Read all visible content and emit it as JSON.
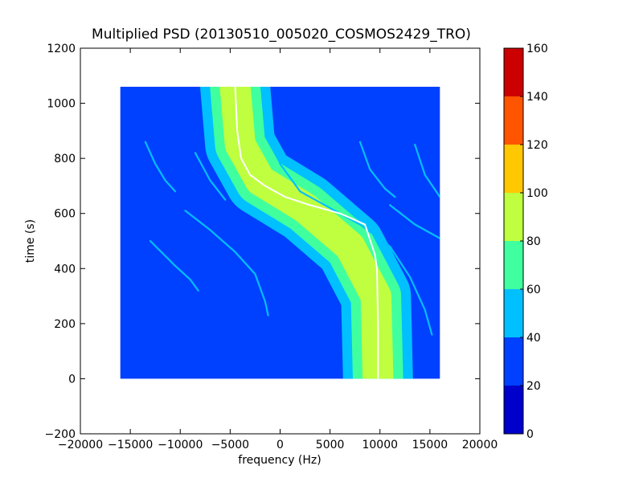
{
  "chart_data": {
    "type": "heatmap",
    "title": "Multiplied PSD (20130510_005020_COSMOS2429_TRO)",
    "xlabel": "frequency (Hz)",
    "ylabel": "time (s)",
    "xlim": [
      -20000,
      20000
    ],
    "ylim": [
      -200,
      1200
    ],
    "xticks": [
      -20000,
      -15000,
      -10000,
      -5000,
      0,
      5000,
      10000,
      15000,
      20000
    ],
    "xtick_labels": [
      "−20000",
      "−15000",
      "−10000",
      "−5000",
      "0",
      "5000",
      "10000",
      "15000",
      "20000"
    ],
    "yticks": [
      -200,
      0,
      200,
      400,
      600,
      800,
      1000,
      1200
    ],
    "ytick_labels": [
      "−200",
      "0",
      "200",
      "400",
      "600",
      "800",
      "1000",
      "1200"
    ],
    "data_extent": {
      "x": [
        -16000,
        16000
      ],
      "y": [
        0,
        1060
      ]
    },
    "background_value_level": "20-40",
    "colorbar": {
      "range": [
        0,
        160
      ],
      "tick_labels": [
        "0",
        "20",
        "40",
        "60",
        "80",
        "100",
        "120",
        "140",
        "160"
      ],
      "levels": [
        {
          "from": 0,
          "to": 20,
          "color": "#0000cc"
        },
        {
          "from": 20,
          "to": 40,
          "color": "#0040ff"
        },
        {
          "from": 40,
          "to": 60,
          "color": "#00c0ff"
        },
        {
          "from": 60,
          "to": 80,
          "color": "#40ff9f"
        },
        {
          "from": 80,
          "to": 100,
          "color": "#bfff40"
        },
        {
          "from": 100,
          "to": 120,
          "color": "#ffc800"
        },
        {
          "from": 120,
          "to": 140,
          "color": "#ff5500"
        },
        {
          "from": 140,
          "to": 160,
          "color": "#cc0000"
        }
      ]
    },
    "main_band": {
      "description_points_center": [
        [
          9800,
          0
        ],
        [
          9600,
          300
        ],
        [
          7000,
          480
        ],
        [
          2500,
          620
        ],
        [
          -2000,
          720
        ],
        [
          -4000,
          850
        ],
        [
          -4500,
          1060
        ]
      ],
      "width_hz": 7000,
      "levels": [
        "40-60",
        "60-80",
        "80-100"
      ]
    },
    "tracked_line": {
      "color": "#ffffff",
      "points": [
        [
          9800,
          0
        ],
        [
          9800,
          200
        ],
        [
          9700,
          400
        ],
        [
          9500,
          450
        ],
        [
          8500,
          560
        ],
        [
          6000,
          600
        ],
        [
          3000,
          630
        ],
        [
          500,
          660
        ],
        [
          -1500,
          700
        ],
        [
          -3000,
          740
        ],
        [
          -3900,
          800
        ],
        [
          -4300,
          900
        ],
        [
          -4500,
          1060
        ]
      ]
    },
    "sideband_lines": [
      {
        "points": [
          [
            -13500,
            860
          ],
          [
            -12500,
            780
          ],
          [
            -11500,
            720
          ],
          [
            -10500,
            680
          ]
        ],
        "level": "40-60"
      },
      {
        "points": [
          [
            -8500,
            820
          ],
          [
            -7000,
            720
          ],
          [
            -5500,
            650
          ]
        ],
        "level": "40-60"
      },
      {
        "points": [
          [
            -9500,
            610
          ],
          [
            -7000,
            540
          ],
          [
            -4500,
            460
          ],
          [
            -2500,
            380
          ],
          [
            -1500,
            280
          ],
          [
            -1200,
            230
          ]
        ],
        "level": "40-60"
      },
      {
        "points": [
          [
            -13000,
            500
          ],
          [
            -10500,
            410
          ],
          [
            -9000,
            360
          ],
          [
            -8200,
            320
          ]
        ],
        "level": "40-60"
      },
      {
        "points": [
          [
            -1000,
            900
          ],
          [
            0,
            780
          ],
          [
            2000,
            680
          ],
          [
            5000,
            620
          ],
          [
            8000,
            560
          ],
          [
            11000,
            480
          ],
          [
            13000,
            370
          ],
          [
            14500,
            250
          ],
          [
            15200,
            160
          ]
        ],
        "level": "40-60"
      },
      {
        "points": [
          [
            8000,
            860
          ],
          [
            9000,
            760
          ],
          [
            10500,
            690
          ],
          [
            11500,
            660
          ]
        ],
        "level": "40-60"
      },
      {
        "points": [
          [
            13500,
            850
          ],
          [
            14500,
            740
          ],
          [
            16000,
            660
          ]
        ],
        "level": "40-60"
      },
      {
        "points": [
          [
            11000,
            630
          ],
          [
            13500,
            560
          ],
          [
            16000,
            510
          ]
        ],
        "level": "40-60"
      }
    ]
  }
}
